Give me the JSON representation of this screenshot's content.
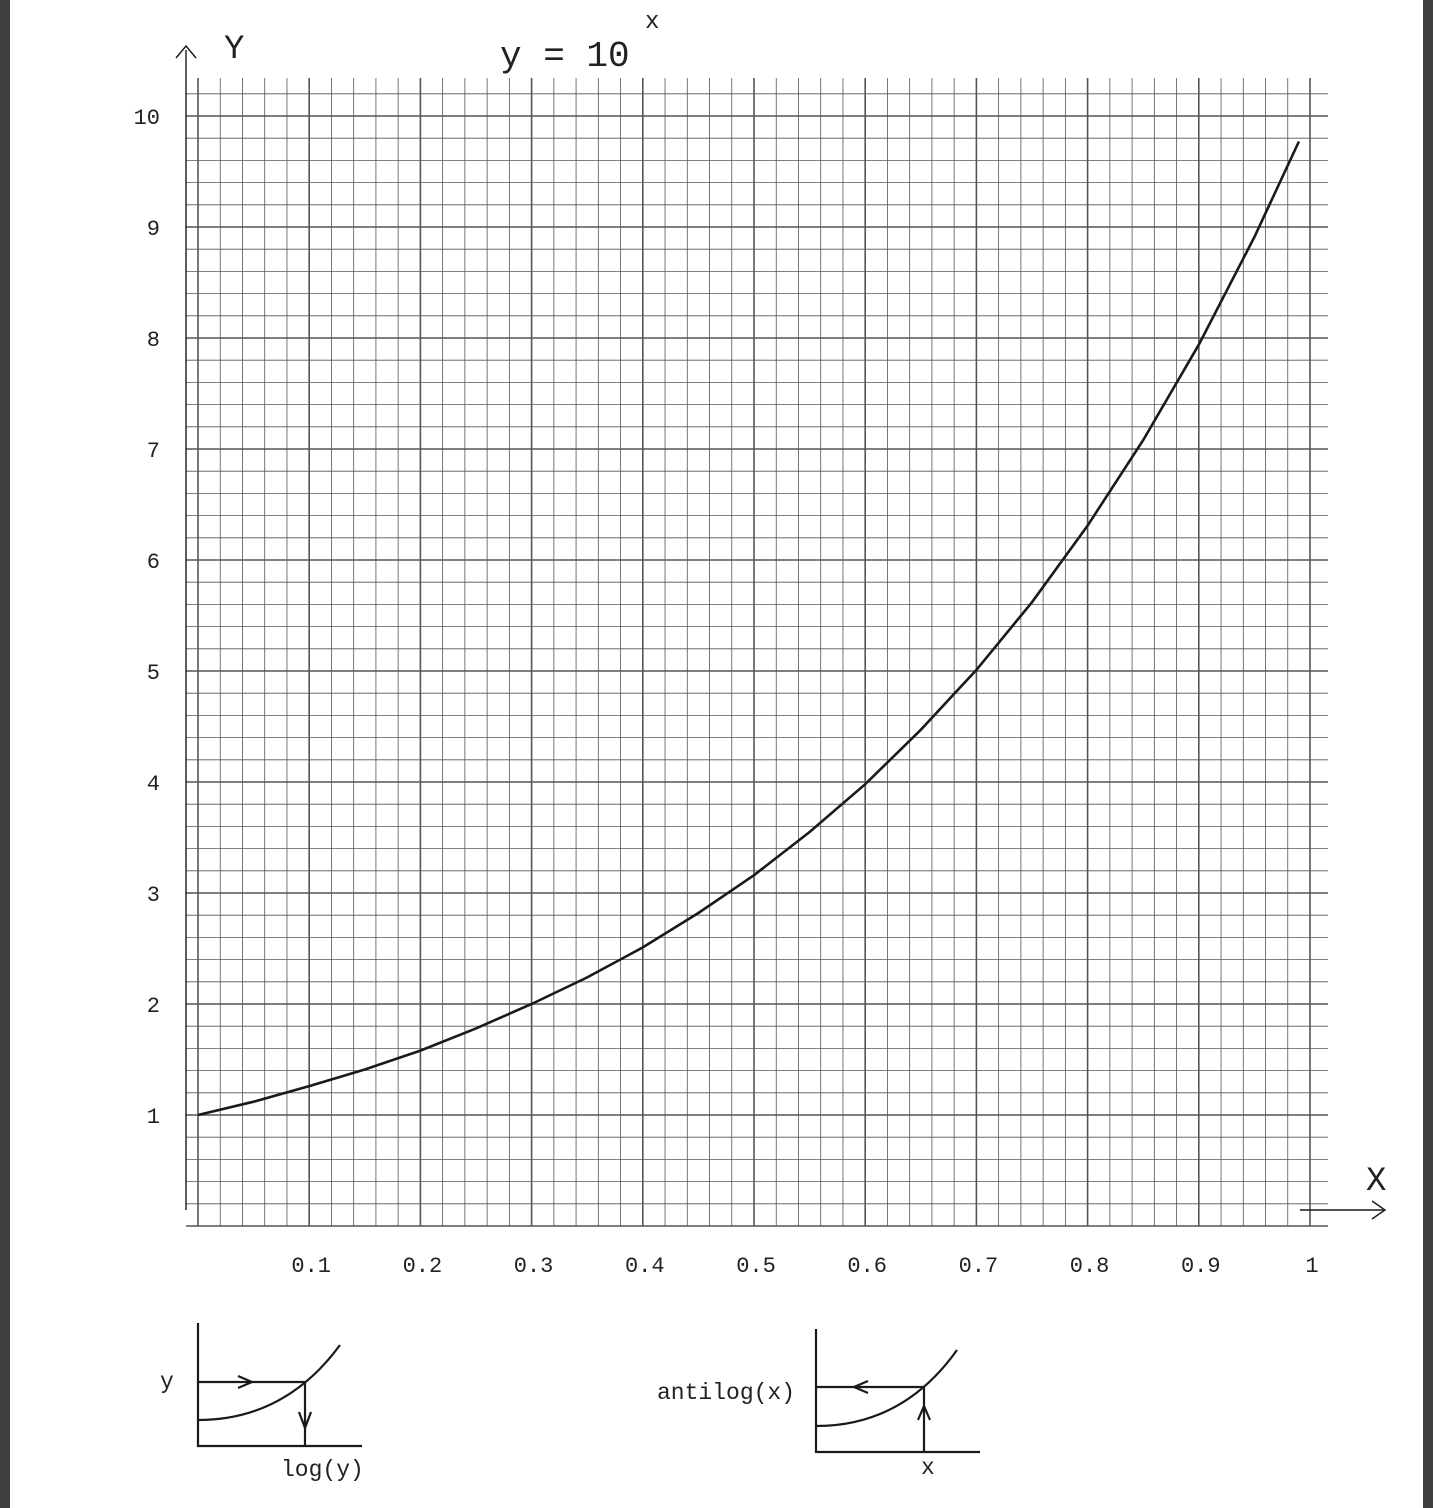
{
  "chart_data": {
    "type": "line",
    "title_base": "y = 10",
    "title_exponent": "x",
    "xlabel": "X",
    "ylabel": "Y",
    "xlim": [
      0,
      1
    ],
    "ylim": [
      0,
      10
    ],
    "grid": true,
    "x_tick_labels": [
      "0.1",
      "0.2",
      "0.3",
      "0.4",
      "0.5",
      "0.6",
      "0.7",
      "0.8",
      "0.9",
      "1"
    ],
    "y_tick_labels": [
      "1",
      "2",
      "3",
      "4",
      "5",
      "6",
      "7",
      "8",
      "9",
      "10"
    ],
    "series": [
      {
        "x": [
          0,
          0.05,
          0.1,
          0.15,
          0.2,
          0.25,
          0.3,
          0.35,
          0.4,
          0.45,
          0.5,
          0.55,
          0.6,
          0.65,
          0.7,
          0.75,
          0.8,
          0.85,
          0.9,
          0.95,
          0.99
        ],
        "y": [
          1.0,
          1.12,
          1.26,
          1.41,
          1.58,
          1.78,
          2.0,
          2.24,
          2.51,
          2.82,
          3.16,
          3.55,
          3.98,
          4.47,
          5.01,
          5.62,
          6.31,
          7.08,
          7.94,
          8.91,
          9.77
        ]
      }
    ]
  },
  "legend_diagrams": {
    "log_diagram": {
      "input_label": "y",
      "output_label": "log(y)"
    },
    "antilog_diagram": {
      "input_label": "x",
      "output_label": "antilog(x)"
    }
  },
  "colors": {
    "ink": "#1a1a1a",
    "grid": "#555555",
    "page": "#ffffff",
    "frame": "#3f3f3f"
  }
}
